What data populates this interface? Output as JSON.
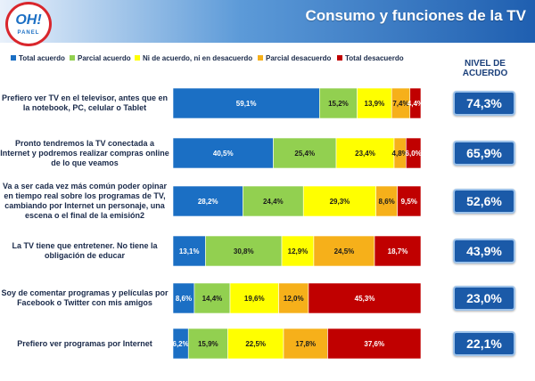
{
  "header": {
    "title": "Consumo y funciones de la TV"
  },
  "logo": {
    "text": "OH!",
    "sub": "PANEL"
  },
  "nivel_header": "NIVEL DE ACUERDO",
  "chart_data": {
    "type": "bar",
    "stacked": true,
    "orientation": "horizontal",
    "xlim": [
      0,
      100
    ],
    "legend_position": "top",
    "colors": [
      "#1b6fc4",
      "#92d050",
      "#ffff00",
      "#f6b01a",
      "#c00000"
    ],
    "legend": [
      "Total acuerdo",
      "Parcial acuerdo",
      "Ni de acuerdo, ni en desacuerdo",
      "Parcial desacuerdo",
      "Total desacuerdo"
    ],
    "categories": [
      "Prefiero ver TV en el televisor, antes que en la notebook, PC, celular o Tablet",
      "Pronto tendremos la TV conectada a Internet y podremos realizar compras online de lo que veamos",
      "Va a ser cada vez más común poder opinar en tiempo real sobre los programas de TV, cambiando por Internet un personaje, una escena o el final de la emisión2",
      "La TV tiene que entretener. No tiene la obligación de educar",
      "Soy de comentar programas y películas por Facebook o Twitter con mis amigos",
      "Prefiero ver programas por Internet"
    ],
    "series": [
      {
        "name": "Total acuerdo",
        "values": [
          59.1,
          40.5,
          28.2,
          13.1,
          8.6,
          6.2
        ]
      },
      {
        "name": "Parcial acuerdo",
        "values": [
          15.2,
          25.4,
          24.4,
          30.8,
          14.4,
          15.9
        ]
      },
      {
        "name": "Ni de acuerdo, ni en desacuerdo",
        "values": [
          13.9,
          23.4,
          29.3,
          12.9,
          19.6,
          22.5
        ]
      },
      {
        "name": "Parcial desacuerdo",
        "values": [
          7.4,
          4.8,
          8.6,
          24.5,
          12.0,
          17.8
        ]
      },
      {
        "name": "Total desacuerdo",
        "values": [
          4.4,
          6.0,
          9.5,
          18.7,
          45.3,
          37.6
        ]
      }
    ],
    "segment_labels": [
      [
        "59,1%",
        "15,2%",
        "13,9%",
        "7,4%",
        "4,4%"
      ],
      [
        "40,5%",
        "25,4%",
        "23,4%",
        "4,8%",
        "6,0%"
      ],
      [
        "28,2%",
        "24,4%",
        "29,3%",
        "8,6%",
        "9,5%"
      ],
      [
        "13,1%",
        "30,8%",
        "12,9%",
        "24,5%",
        "18,7%"
      ],
      [
        "8,6%",
        "14,4%",
        "19,6%",
        "12,0%",
        "45,3%"
      ],
      [
        "6,2%",
        "15,9%",
        "22,5%",
        "17,8%",
        "37,6%"
      ]
    ],
    "nivel_de_acuerdo": [
      "74,3%",
      "65,9%",
      "52,6%",
      "43,9%",
      "23,0%",
      "22,1%"
    ]
  }
}
